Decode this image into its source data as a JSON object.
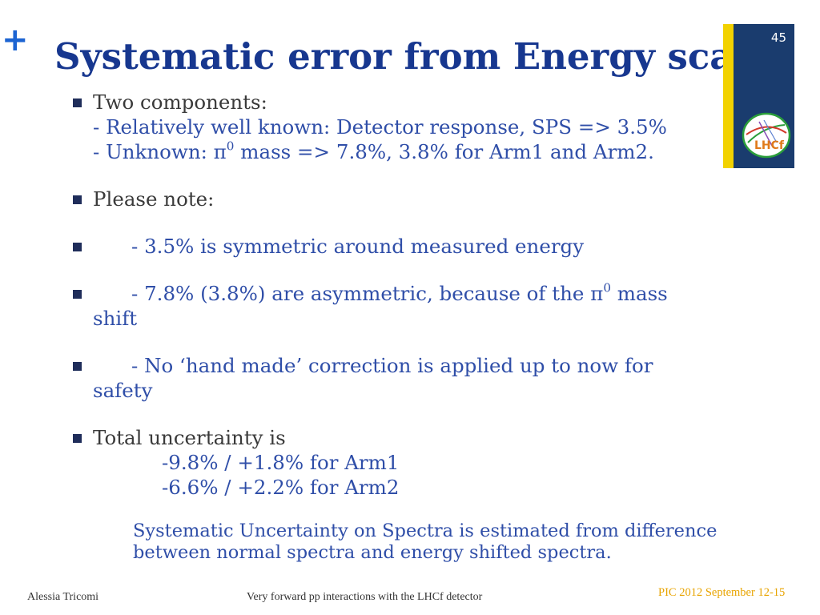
{
  "slide": {
    "plus_sign": "+",
    "title": "Systematic error from Energy scale",
    "page_number": "45",
    "logo_text": "LHCf"
  },
  "bullets": {
    "b1": {
      "heading": "Two components:",
      "line1": "- Relatively well known: Detector response, SPS => 3.5%",
      "line2_prefix": "- Unknown: ",
      "line2_pi": "π",
      "line2_sup": "0",
      "line2_suffix": " mass => 7.8%, 3.8% for Arm1 and Arm2."
    },
    "b2": {
      "heading": "Please note:"
    },
    "b3": {
      "text": "- 3.5% is symmetric around measured energy"
    },
    "b4": {
      "text_prefix": "- 7.8% (3.8%) are asymmetric, because of the ",
      "pi": "π",
      "sup": "0",
      "text_suffix": " mass",
      "continuation": "shift"
    },
    "b5": {
      "text": "- No ‘hand made’ correction is applied up to now for",
      "continuation": "safety"
    },
    "b6": {
      "heading": "Total uncertainty is",
      "line1": "-9.8% / +1.8% for Arm1",
      "line2": "-6.6% / +2.2% for Arm2"
    }
  },
  "note": {
    "line1": "Systematic Uncertainty on Spectra is estimated from difference",
    "line2": "between normal spectra and energy shifted spectra."
  },
  "footer": {
    "author": "Alessia Tricomi",
    "talk_title": "Very forward pp interactions with the LHCf detector",
    "conference": "PIC 2012 September 12-15"
  },
  "colors": {
    "title": "#17378f",
    "body_text": "#3a3a3a",
    "sub_text": "#2f4ea8",
    "accent_yellow": "#f2d200",
    "logo_box": "#1a3c6e",
    "conference": "#e8a400"
  }
}
